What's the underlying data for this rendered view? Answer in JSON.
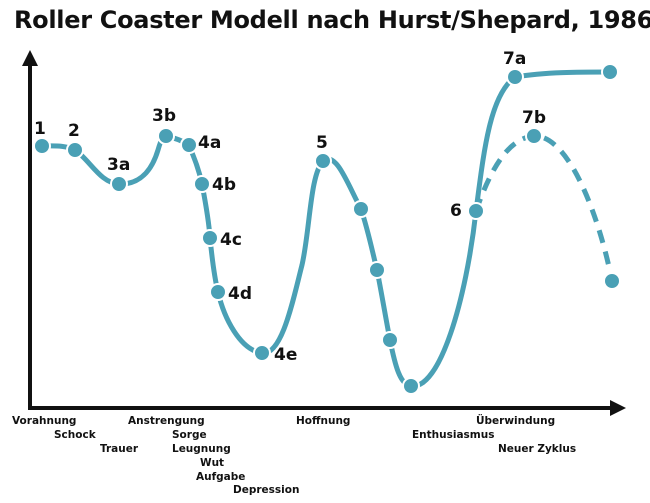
{
  "title": "Roller Coaster Modell nach Hurst/Shepard, 1986",
  "colors": {
    "curve": "#4aa0b5",
    "dot": "#4aa0b5",
    "dot_stroke": "#ffffff",
    "axis": "#111111",
    "text": "#111111"
  },
  "points": [
    {
      "id": "1",
      "label": "1"
    },
    {
      "id": "2",
      "label": "2"
    },
    {
      "id": "3a",
      "label": "3a"
    },
    {
      "id": "3b",
      "label": "3b"
    },
    {
      "id": "4a",
      "label": "4a"
    },
    {
      "id": "4b",
      "label": "4b"
    },
    {
      "id": "4c",
      "label": "4c"
    },
    {
      "id": "4d",
      "label": "4d"
    },
    {
      "id": "4e",
      "label": "4e"
    },
    {
      "id": "5",
      "label": "5"
    },
    {
      "id": "6",
      "label": "6"
    },
    {
      "id": "7a",
      "label": "7a"
    },
    {
      "id": "7b",
      "label": "7b"
    }
  ],
  "x_labels": [
    "Vorahnung",
    "Schock",
    "Trauer",
    "Anstrengung",
    "Sorge",
    "Leugnung",
    "Wut",
    "Aufgabe",
    "Depression",
    "Hoffnung",
    "Enthusiasmus",
    "Überwindung",
    "Neuer Zyklus"
  ]
}
